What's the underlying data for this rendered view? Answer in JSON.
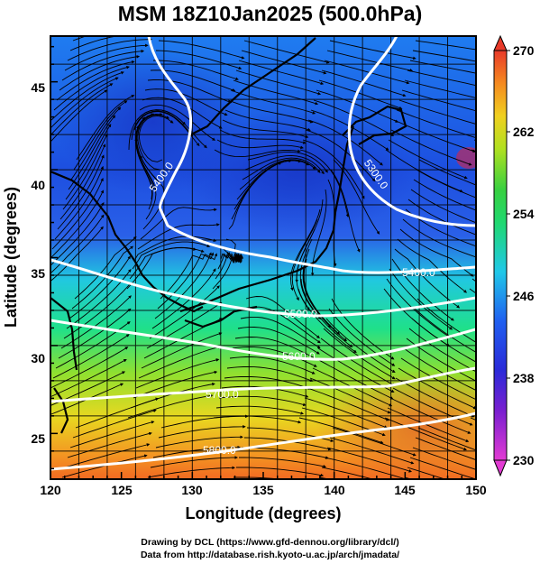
{
  "title": "MSM 18Z10Jan2025 (500.0hPa)",
  "x_axis": {
    "label": "Longitude (degrees)",
    "ticks": [
      "120",
      "125",
      "130",
      "135",
      "140",
      "145",
      "150"
    ],
    "range": [
      120,
      150
    ]
  },
  "y_axis": {
    "label": "Latitude  (degrees)",
    "ticks": [
      "25",
      "30",
      "35",
      "40",
      "45"
    ],
    "range": [
      22.4,
      47.6
    ]
  },
  "colorbar": {
    "ticks": [
      "270",
      "262",
      "254",
      "246",
      "238",
      "230"
    ],
    "range": [
      230,
      270
    ]
  },
  "contours": [
    {
      "label": "5400.0"
    },
    {
      "label": "5300.0"
    },
    {
      "label": "5400.0"
    },
    {
      "label": "5500.0"
    },
    {
      "label": "5600.0"
    },
    {
      "label": "5700.0"
    },
    {
      "label": "5800.0"
    }
  ],
  "credits": {
    "line1": "Drawing by DCL (https://www.gfd-dennou.org/library/dcl/)",
    "line2": "Data from http://database.rish.kyoto-u.ac.jp/arch/jmadata/"
  }
}
